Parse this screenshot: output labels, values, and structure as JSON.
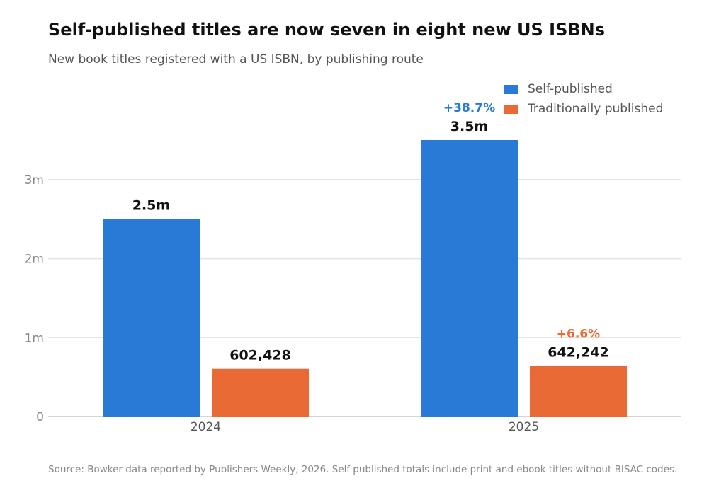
{
  "title": "Self-published titles are now seven in eight new US ISBNs",
  "subtitle": "New book titles registered with a US ISBN, by publishing route",
  "source": "Source: Bowker data reported by Publishers Weekly, 2026. Self-published totals include print and ebook titles without BISAC codes.",
  "legend": {
    "placement": "top-right",
    "items": [
      {
        "label": "Self-published",
        "color": "#2979d7"
      },
      {
        "label": "Traditionally published",
        "color": "#ea6a35"
      }
    ]
  },
  "chart_data": {
    "type": "bar",
    "categories": [
      "2024",
      "2025"
    ],
    "series": [
      {
        "name": "Self-published",
        "color": "#2979d7",
        "values": [
          2500000,
          3500000
        ],
        "value_labels": [
          "2.5m",
          "3.5m"
        ],
        "change_labels": [
          "",
          "+38.7%"
        ]
      },
      {
        "name": "Traditionally published",
        "color": "#ea6a35",
        "values": [
          602428,
          642242
        ],
        "value_labels": [
          "602,428",
          "642,242"
        ],
        "change_labels": [
          "",
          "+6.6%"
        ]
      }
    ],
    "y_ticks": [
      {
        "value": 0,
        "label": "0"
      },
      {
        "value": 1000000,
        "label": "1m"
      },
      {
        "value": 2000000,
        "label": "2m"
      },
      {
        "value": 3000000,
        "label": "3m"
      }
    ],
    "ylim": [
      0,
      3500000
    ],
    "xlabel": "",
    "ylabel": "",
    "grid": true
  }
}
